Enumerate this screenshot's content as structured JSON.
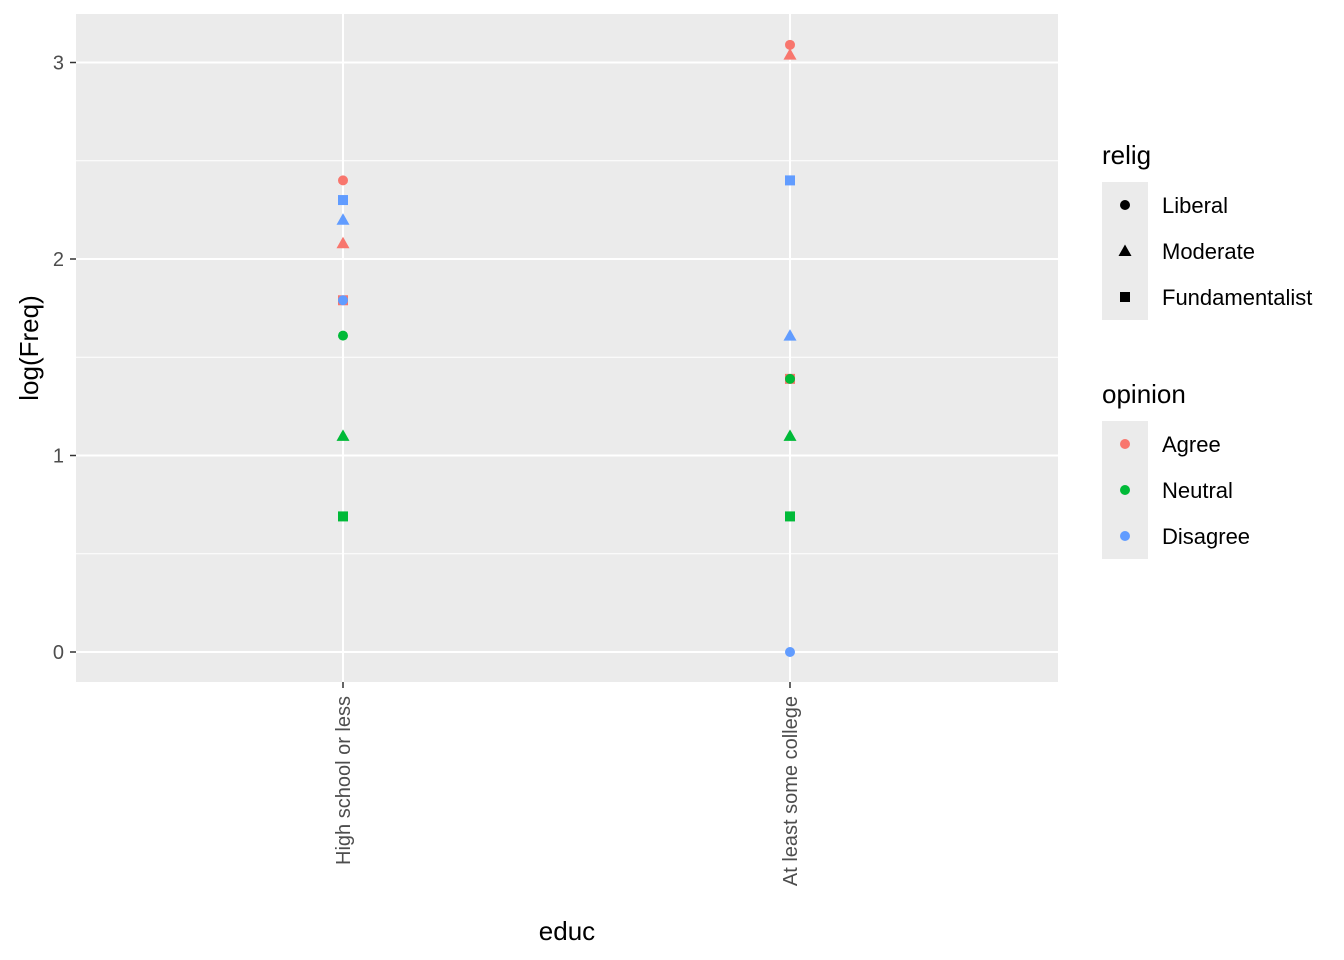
{
  "chart_data": {
    "type": "scatter",
    "xlabel": "educ",
    "ylabel": "log(Freq)",
    "categories": [
      "High school or less",
      "At least some college"
    ],
    "yticks": [
      0,
      1,
      2,
      3
    ],
    "ylim": [
      -0.15,
      3.25
    ],
    "grid": true,
    "legend_placement": "right",
    "points": [
      {
        "x": "High school or less",
        "y": 2.4,
        "relig": "Liberal",
        "opinion": "Agree"
      },
      {
        "x": "High school or less",
        "y": 2.3,
        "relig": "Fundamentalist",
        "opinion": "Disagree"
      },
      {
        "x": "High school or less",
        "y": 2.2,
        "relig": "Moderate",
        "opinion": "Disagree"
      },
      {
        "x": "High school or less",
        "y": 2.08,
        "relig": "Moderate",
        "opinion": "Agree"
      },
      {
        "x": "High school or less",
        "y": 1.79,
        "relig": "Fundamentalist",
        "opinion": "Agree"
      },
      {
        "x": "High school or less",
        "y": 1.79,
        "relig": "Liberal",
        "opinion": "Disagree"
      },
      {
        "x": "High school or less",
        "y": 1.61,
        "relig": "Liberal",
        "opinion": "Neutral"
      },
      {
        "x": "High school or less",
        "y": 1.1,
        "relig": "Moderate",
        "opinion": "Neutral"
      },
      {
        "x": "High school or less",
        "y": 0.69,
        "relig": "Fundamentalist",
        "opinion": "Neutral"
      },
      {
        "x": "At least some college",
        "y": 3.09,
        "relig": "Liberal",
        "opinion": "Agree"
      },
      {
        "x": "At least some college",
        "y": 3.04,
        "relig": "Moderate",
        "opinion": "Agree"
      },
      {
        "x": "At least some college",
        "y": 2.4,
        "relig": "Fundamentalist",
        "opinion": "Disagree"
      },
      {
        "x": "At least some college",
        "y": 1.61,
        "relig": "Moderate",
        "opinion": "Disagree"
      },
      {
        "x": "At least some college",
        "y": 1.39,
        "relig": "Fundamentalist",
        "opinion": "Agree"
      },
      {
        "x": "At least some college",
        "y": 1.39,
        "relig": "Liberal",
        "opinion": "Neutral"
      },
      {
        "x": "At least some college",
        "y": 1.1,
        "relig": "Moderate",
        "opinion": "Neutral"
      },
      {
        "x": "At least some college",
        "y": 0.69,
        "relig": "Fundamentalist",
        "opinion": "Neutral"
      },
      {
        "x": "At least some college",
        "y": 0.0,
        "relig": "Liberal",
        "opinion": "Disagree"
      }
    ],
    "legends": {
      "shape": {
        "title": "relig",
        "items": [
          {
            "label": "Liberal",
            "shape": "circle"
          },
          {
            "label": "Moderate",
            "shape": "triangle"
          },
          {
            "label": "Fundamentalist",
            "shape": "square"
          }
        ]
      },
      "color": {
        "title": "opinion",
        "items": [
          {
            "label": "Agree",
            "color": "#F8766D"
          },
          {
            "label": "Neutral",
            "color": "#00BA38"
          },
          {
            "label": "Disagree",
            "color": "#619CFF"
          }
        ]
      }
    },
    "colors": {
      "panel_background": "#EBEBEB",
      "grid": "#FFFFFF",
      "legend_key_background": "#EBEBEB"
    }
  }
}
